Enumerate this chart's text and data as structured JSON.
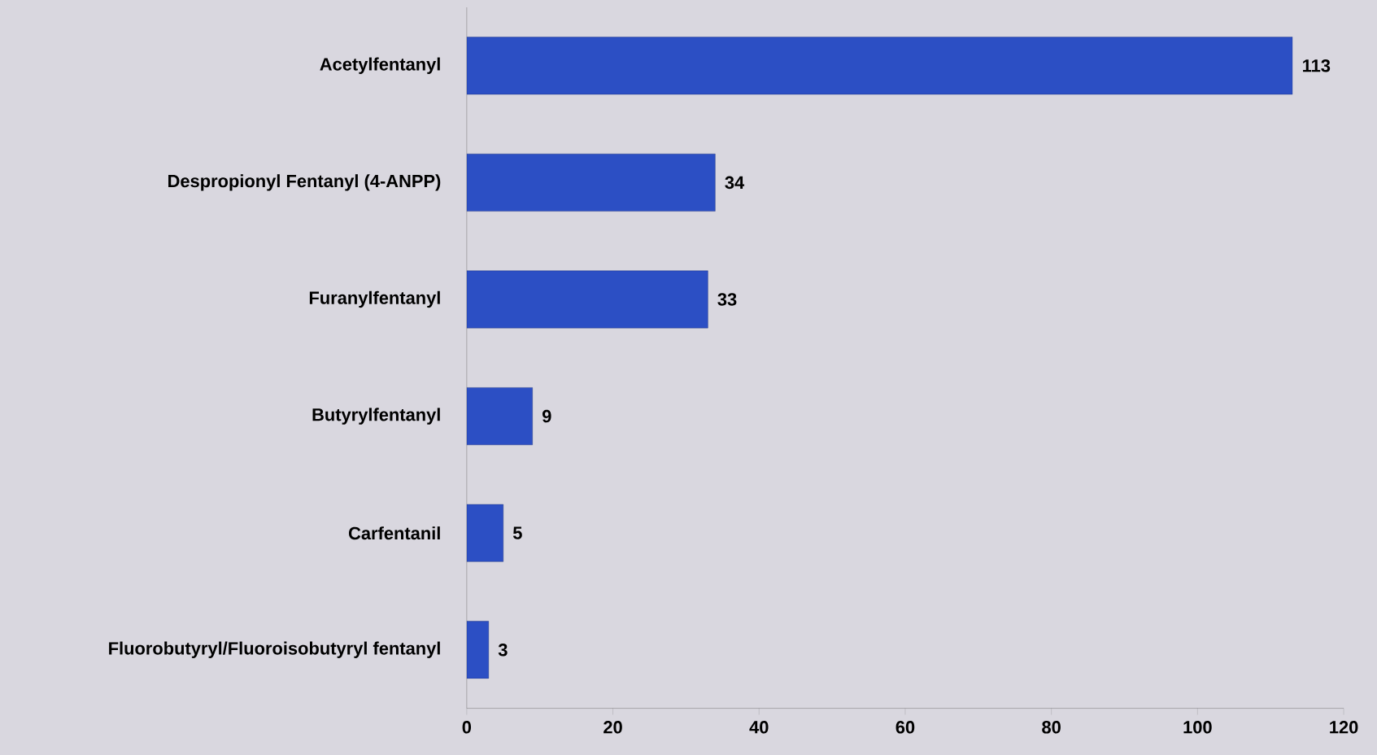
{
  "chart_data": {
    "type": "bar",
    "orientation": "horizontal",
    "categories": [
      "Acetylfentanyl",
      "Despropionyl Fentanyl (4-ANPP)",
      "Furanylfentanyl",
      "Butyrylfentanyl",
      "Carfentanil",
      "Fluorobutyryl/Fluoroisobutyryl fentanyl"
    ],
    "values": [
      113,
      34,
      33,
      9,
      5,
      3
    ],
    "color": "#2c4fc4",
    "xlim": [
      0,
      120
    ],
    "xticks": [
      0,
      20,
      40,
      60,
      80,
      100,
      120
    ],
    "data_labels": true
  }
}
